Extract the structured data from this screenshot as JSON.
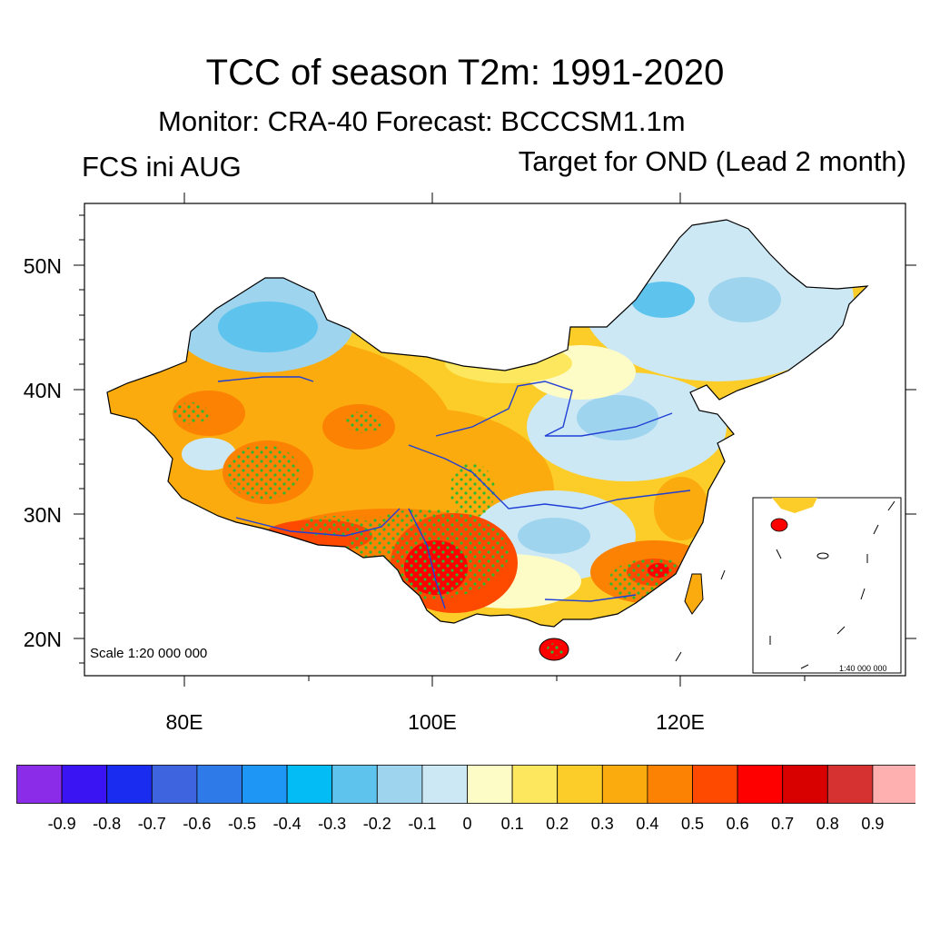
{
  "title": "TCC of season T2m: 1991-2020",
  "subtitle": "Monitor: CRA-40   Forecast: BCCCSM1.1m",
  "left_label": "FCS ini AUG",
  "right_label": "Target for OND (Lead 2 month)",
  "map": {
    "lat_labels": [
      "50N",
      "40N",
      "30N",
      "20N"
    ],
    "lon_labels": [
      "80E",
      "100E",
      "120E"
    ],
    "scale_text": "Scale 1:20 000 000",
    "inset_scale_text": "1:40 000 000",
    "land_color": "#ffffff",
    "border_color": "#000000",
    "river_color": "#1f3fd6",
    "stipple_color": "#2fb82f"
  },
  "colorbar": {
    "colors": [
      "#8a2ce8",
      "#3a14f2",
      "#1a2cf0",
      "#3e64e0",
      "#2e7ae8",
      "#1e96f5",
      "#04bcf5",
      "#5ec4ee",
      "#9fd4ef",
      "#cce8f5",
      "#fdfcc6",
      "#fce75e",
      "#fccd28",
      "#fbab0d",
      "#fb8203",
      "#fd4a00",
      "#fe0000",
      "#d90000",
      "#d73232",
      "#feb0b0"
    ],
    "labels": [
      "-0.9",
      "-0.8",
      "-0.7",
      "-0.6",
      "-0.5",
      "-0.4",
      "-0.3",
      "-0.2",
      "-0.1",
      "0",
      "0.1",
      "0.2",
      "0.3",
      "0.4",
      "0.5",
      "0.6",
      "0.7",
      "0.8",
      "0.9"
    ]
  }
}
